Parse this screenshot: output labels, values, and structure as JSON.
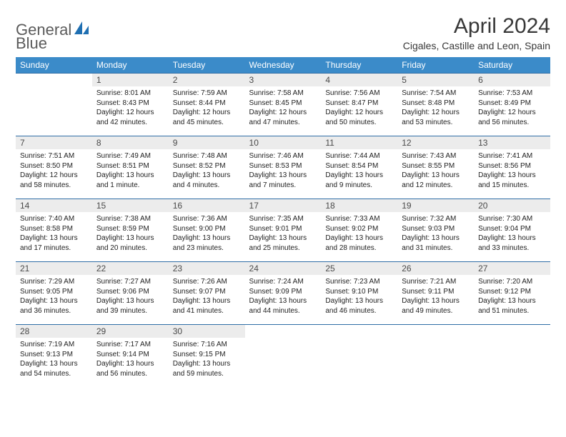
{
  "brand": {
    "name1": "General",
    "name2": "Blue"
  },
  "title": "April 2024",
  "location": "Cigales, Castille and Leon, Spain",
  "colors": {
    "header_bg": "#3b8bc9",
    "header_fg": "#ffffff",
    "row_border": "#2f6ea6",
    "daynum_bg": "#ececec",
    "text": "#222222",
    "logo_text": "#5b5b5b",
    "logo_accent": "#1f6fb2"
  },
  "days_of_week": [
    "Sunday",
    "Monday",
    "Tuesday",
    "Wednesday",
    "Thursday",
    "Friday",
    "Saturday"
  ],
  "weeks": [
    [
      null,
      {
        "n": "1",
        "sr": "8:01 AM",
        "ss": "8:43 PM",
        "dl": "12 hours and 42 minutes."
      },
      {
        "n": "2",
        "sr": "7:59 AM",
        "ss": "8:44 PM",
        "dl": "12 hours and 45 minutes."
      },
      {
        "n": "3",
        "sr": "7:58 AM",
        "ss": "8:45 PM",
        "dl": "12 hours and 47 minutes."
      },
      {
        "n": "4",
        "sr": "7:56 AM",
        "ss": "8:47 PM",
        "dl": "12 hours and 50 minutes."
      },
      {
        "n": "5",
        "sr": "7:54 AM",
        "ss": "8:48 PM",
        "dl": "12 hours and 53 minutes."
      },
      {
        "n": "6",
        "sr": "7:53 AM",
        "ss": "8:49 PM",
        "dl": "12 hours and 56 minutes."
      }
    ],
    [
      {
        "n": "7",
        "sr": "7:51 AM",
        "ss": "8:50 PM",
        "dl": "12 hours and 58 minutes."
      },
      {
        "n": "8",
        "sr": "7:49 AM",
        "ss": "8:51 PM",
        "dl": "13 hours and 1 minute."
      },
      {
        "n": "9",
        "sr": "7:48 AM",
        "ss": "8:52 PM",
        "dl": "13 hours and 4 minutes."
      },
      {
        "n": "10",
        "sr": "7:46 AM",
        "ss": "8:53 PM",
        "dl": "13 hours and 7 minutes."
      },
      {
        "n": "11",
        "sr": "7:44 AM",
        "ss": "8:54 PM",
        "dl": "13 hours and 9 minutes."
      },
      {
        "n": "12",
        "sr": "7:43 AM",
        "ss": "8:55 PM",
        "dl": "13 hours and 12 minutes."
      },
      {
        "n": "13",
        "sr": "7:41 AM",
        "ss": "8:56 PM",
        "dl": "13 hours and 15 minutes."
      }
    ],
    [
      {
        "n": "14",
        "sr": "7:40 AM",
        "ss": "8:58 PM",
        "dl": "13 hours and 17 minutes."
      },
      {
        "n": "15",
        "sr": "7:38 AM",
        "ss": "8:59 PM",
        "dl": "13 hours and 20 minutes."
      },
      {
        "n": "16",
        "sr": "7:36 AM",
        "ss": "9:00 PM",
        "dl": "13 hours and 23 minutes."
      },
      {
        "n": "17",
        "sr": "7:35 AM",
        "ss": "9:01 PM",
        "dl": "13 hours and 25 minutes."
      },
      {
        "n": "18",
        "sr": "7:33 AM",
        "ss": "9:02 PM",
        "dl": "13 hours and 28 minutes."
      },
      {
        "n": "19",
        "sr": "7:32 AM",
        "ss": "9:03 PM",
        "dl": "13 hours and 31 minutes."
      },
      {
        "n": "20",
        "sr": "7:30 AM",
        "ss": "9:04 PM",
        "dl": "13 hours and 33 minutes."
      }
    ],
    [
      {
        "n": "21",
        "sr": "7:29 AM",
        "ss": "9:05 PM",
        "dl": "13 hours and 36 minutes."
      },
      {
        "n": "22",
        "sr": "7:27 AM",
        "ss": "9:06 PM",
        "dl": "13 hours and 39 minutes."
      },
      {
        "n": "23",
        "sr": "7:26 AM",
        "ss": "9:07 PM",
        "dl": "13 hours and 41 minutes."
      },
      {
        "n": "24",
        "sr": "7:24 AM",
        "ss": "9:09 PM",
        "dl": "13 hours and 44 minutes."
      },
      {
        "n": "25",
        "sr": "7:23 AM",
        "ss": "9:10 PM",
        "dl": "13 hours and 46 minutes."
      },
      {
        "n": "26",
        "sr": "7:21 AM",
        "ss": "9:11 PM",
        "dl": "13 hours and 49 minutes."
      },
      {
        "n": "27",
        "sr": "7:20 AM",
        "ss": "9:12 PM",
        "dl": "13 hours and 51 minutes."
      }
    ],
    [
      {
        "n": "28",
        "sr": "7:19 AM",
        "ss": "9:13 PM",
        "dl": "13 hours and 54 minutes."
      },
      {
        "n": "29",
        "sr": "7:17 AM",
        "ss": "9:14 PM",
        "dl": "13 hours and 56 minutes."
      },
      {
        "n": "30",
        "sr": "7:16 AM",
        "ss": "9:15 PM",
        "dl": "13 hours and 59 minutes."
      },
      null,
      null,
      null,
      null
    ]
  ],
  "labels": {
    "sunrise": "Sunrise:",
    "sunset": "Sunset:",
    "daylight": "Daylight:"
  }
}
